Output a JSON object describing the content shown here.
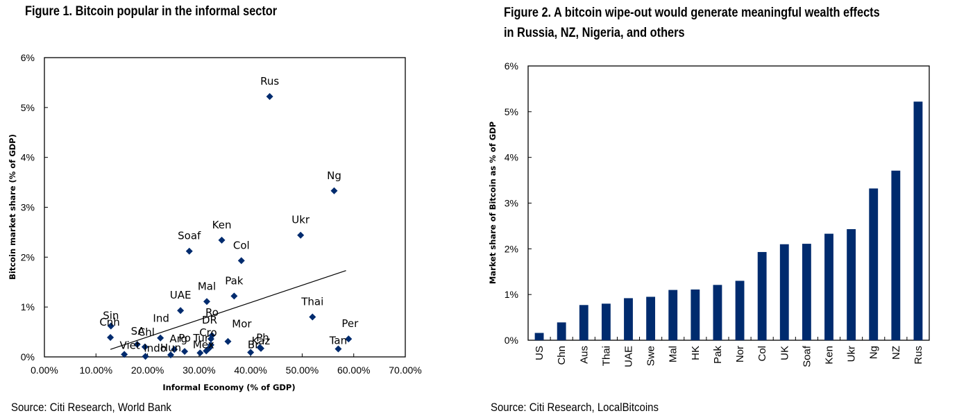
{
  "figure1": {
    "title": "Figure 1. Bitcoin popular in the informal sector",
    "source": "Source: Citi Research, World Bank"
  },
  "figure2": {
    "title_line1": "Figure 2. A bitcoin wipe-out would generate meaningful wealth effects",
    "title_line2": "in Russia, NZ, Nigeria, and others",
    "source": "Source: Citi Research, LocalBitcoins"
  },
  "colors": {
    "series": "#002b6e",
    "axis": "#000000"
  },
  "chart_data": [
    {
      "type": "scatter",
      "title": "Figure 1. Bitcoin popular in the informal sector",
      "xlabel": "Informal Economy (% of GDP)",
      "ylabel": "Bitcoin market share (% of GDP)",
      "xlim": [
        0,
        70
      ],
      "ylim": [
        0,
        6
      ],
      "x_ticks": [
        "0.00%",
        "10.00%",
        "20.00%",
        "30.00%",
        "40.00%",
        "50.00%",
        "60.00%",
        "70.00%"
      ],
      "y_ticks": [
        "0%",
        "1%",
        "2%",
        "3%",
        "4%",
        "5%",
        "6%"
      ],
      "grid": false,
      "trendline": {
        "x": [
          12.8,
          58.5
        ],
        "y": [
          0.15,
          1.73
        ]
      },
      "points": [
        {
          "label": "Rus",
          "x": 43.7,
          "y": 5.22
        },
        {
          "label": "Ng",
          "x": 56.2,
          "y": 3.33
        },
        {
          "label": "Ukr",
          "x": 49.7,
          "y": 2.44
        },
        {
          "label": "Ken",
          "x": 34.4,
          "y": 2.34
        },
        {
          "label": "Soaf",
          "x": 28.1,
          "y": 2.12
        },
        {
          "label": "Col",
          "x": 38.2,
          "y": 1.93
        },
        {
          "label": "Pak",
          "x": 36.8,
          "y": 1.22
        },
        {
          "label": "Mal",
          "x": 31.5,
          "y": 1.11
        },
        {
          "label": "UAE",
          "x": 26.4,
          "y": 0.93
        },
        {
          "label": "Thai",
          "x": 52.0,
          "y": 0.8
        },
        {
          "label": "Sin",
          "x": 12.9,
          "y": 0.62
        },
        {
          "label": "Cnh",
          "x": 12.8,
          "y": 0.39
        },
        {
          "label": "Per",
          "x": 59.0,
          "y": 0.36
        },
        {
          "label": "Ind",
          "x": 22.5,
          "y": 0.38
        },
        {
          "label": "Ro",
          "x": 32.5,
          "y": 0.43
        },
        {
          "label": "DR",
          "x": 32.3,
          "y": 0.36
        },
        {
          "label": "Mor",
          "x": 35.6,
          "y": 0.31
        },
        {
          "label": "Cro",
          "x": 32.3,
          "y": 0.24
        },
        {
          "label": "Tur",
          "x": 32.0,
          "y": 0.18
        },
        {
          "label": "SA",
          "x": 18.0,
          "y": 0.25
        },
        {
          "label": "Chl",
          "x": 19.5,
          "y": 0.2
        },
        {
          "label": "Arg",
          "x": 25.2,
          "y": 0.15
        },
        {
          "label": "Po",
          "x": 27.2,
          "y": 0.11
        },
        {
          "label": "Mex",
          "x": 31.4,
          "y": 0.12
        },
        {
          "label": "Hun",
          "x": 24.5,
          "y": 0.04
        },
        {
          "label": "Viet",
          "x": 15.5,
          "y": 0.05
        },
        {
          "label": "Indo",
          "x": 19.6,
          "y": 0.01
        },
        {
          "label": "Br",
          "x": 40.0,
          "y": 0.09
        },
        {
          "label": "Ph",
          "x": 41.8,
          "y": 0.19
        },
        {
          "label": "Kaz",
          "x": 42.0,
          "y": 0.17
        },
        {
          "label": "Tan",
          "x": 57.0,
          "y": 0.16
        },
        {
          "label": "Per2",
          "x": 30.2,
          "y": 0.08
        }
      ]
    },
    {
      "type": "bar",
      "title": "Figure 2. A bitcoin wipe-out would generate meaningful wealth effects in Russia, NZ, Nigeria, and others",
      "xlabel": "",
      "ylabel": "Market share of Bitcoin as % of GDP",
      "ylim": [
        0,
        6
      ],
      "y_ticks": [
        "0%",
        "1%",
        "2%",
        "3%",
        "4%",
        "5%",
        "6%"
      ],
      "grid": false,
      "categories": [
        "US",
        "Chn",
        "Aus",
        "Thai",
        "UAE",
        "Swe",
        "Mal",
        "HK",
        "Pak",
        "Nor",
        "Col",
        "UK",
        "Soaf",
        "Ken",
        "Ukr",
        "Ng",
        "NZ",
        "Rus"
      ],
      "values": [
        0.16,
        0.39,
        0.77,
        0.8,
        0.92,
        0.95,
        1.1,
        1.11,
        1.21,
        1.3,
        1.93,
        2.1,
        2.11,
        2.33,
        2.43,
        3.32,
        3.71,
        5.22
      ]
    }
  ]
}
